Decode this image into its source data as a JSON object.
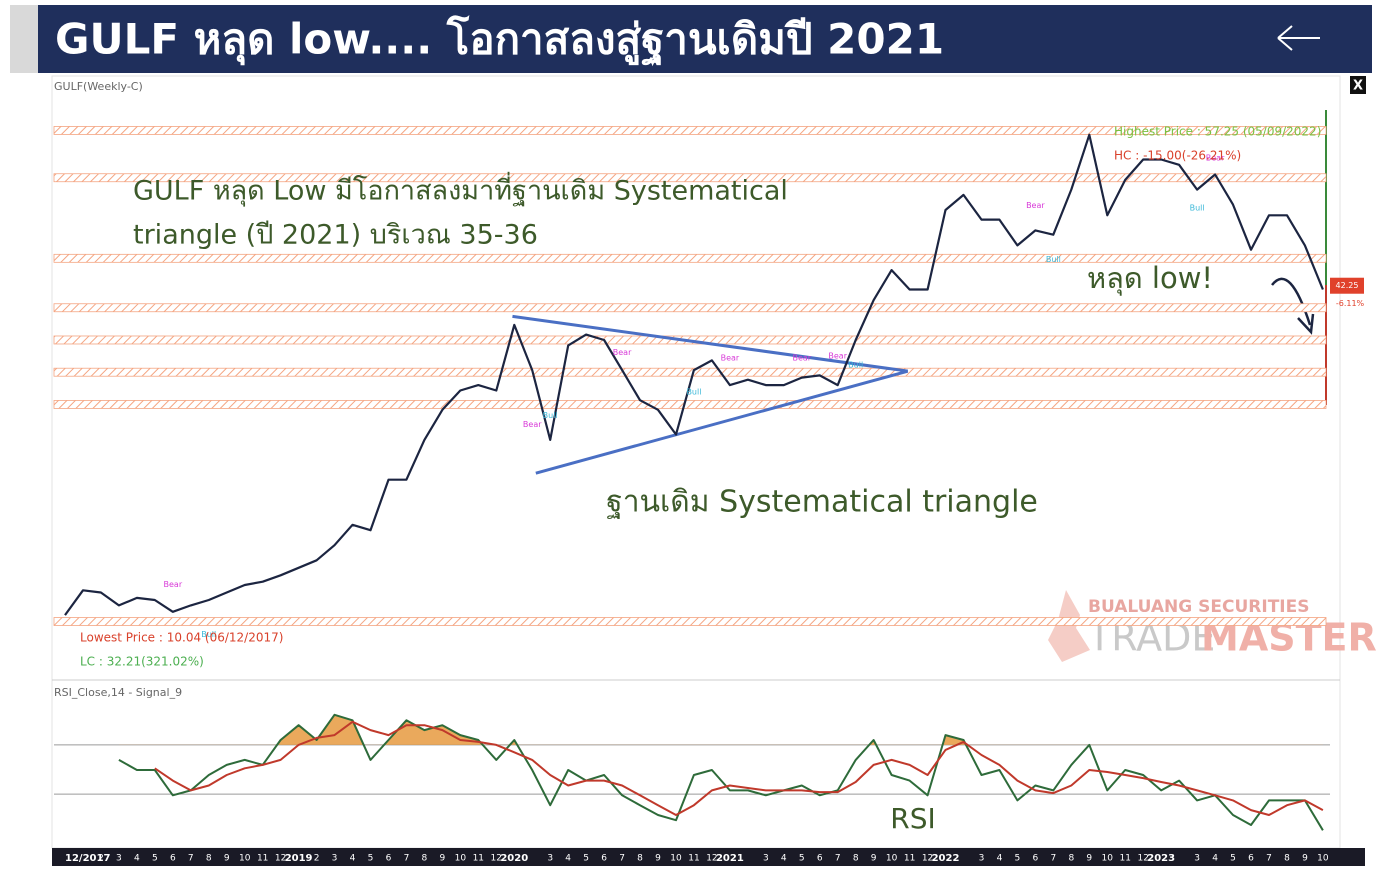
{
  "header": {
    "title": "GULF หลุด low.... โอกาสลงสู่ฐานเดิมปี 2021"
  },
  "close_label": "X",
  "watermark": {
    "company": "BUALUANG SECURITIES",
    "brand_a": "TRADE",
    "brand_b": "MASTER"
  },
  "chart_data": [
    {
      "type": "line",
      "title": "GULF(Weekly-C)",
      "series": [
        {
          "color": "#1c2541",
          "values": [
            11.6,
            13.9,
            13.7,
            12.5,
            13.2,
            13.0,
            11.9,
            12.5,
            13.0,
            13.7,
            14.4,
            14.7,
            15.3,
            16.0,
            16.7,
            18.1,
            20.0,
            19.5,
            24.2,
            24.2,
            27.9,
            30.7,
            32.5,
            33.0,
            32.5,
            38.6,
            34.4,
            27.9,
            36.7,
            37.7,
            37.2,
            34.4,
            31.6,
            30.7,
            28.4,
            34.4,
            35.3,
            33.0,
            33.5,
            33.0,
            33.0,
            33.7,
            33.9,
            33.0,
            37.2,
            40.9,
            43.7,
            41.9,
            41.9,
            49.3,
            50.7,
            48.4,
            48.4,
            46.0,
            47.4,
            47.0,
            51.2,
            56.3,
            48.8,
            52.1,
            54.0,
            54.0,
            53.5,
            51.2,
            52.6,
            49.8,
            45.6,
            48.8,
            48.8,
            46.0,
            41.9
          ]
        }
      ],
      "ylim": [
        6.3,
        60.0
      ],
      "zones": [
        56.7,
        52.3,
        44.8,
        40.2,
        37.2,
        34.2,
        31.2,
        11.0
      ],
      "zone_color": "#f4a582",
      "triangle": {
        "color": "#4a6fc4",
        "lines": [
          {
            "from": [
              24.9,
              39.4
            ],
            "to": [
              46.9,
              34.3
            ]
          },
          {
            "from": [
              26.2,
              24.8
            ],
            "to": [
              46.9,
              34.3
            ]
          }
        ]
      },
      "highest_label": "Highest Price : 57.25 (05/09/2022)",
      "hc_label": "HC : -15.00(-26.21%)",
      "lowest_label": "Lowest Price : 10.04 (06/12/2017)",
      "lc_label": "LC : 32.21(321.02%)",
      "last_price": 42.25,
      "change_label": "-6.11%",
      "signals": [
        {
          "label": "Bear",
          "at": 6,
          "price": 13.5
        },
        {
          "label": "Bull",
          "at": 8,
          "price": 10.7
        },
        {
          "label": "Bear",
          "at": 26,
          "price": 28.4
        },
        {
          "label": "Bull",
          "at": 27,
          "price": 31.1
        },
        {
          "label": "Bear",
          "at": 31,
          "price": 35.1
        },
        {
          "label": "Bull",
          "at": 35,
          "price": 33.3
        },
        {
          "label": "Bear",
          "at": 37,
          "price": 34.6
        },
        {
          "label": "Bear",
          "at": 41,
          "price": 34.6
        },
        {
          "label": "Bear",
          "at": 43,
          "price": 34.8
        },
        {
          "label": "Bull",
          "at": 44,
          "price": 35.8
        },
        {
          "label": "Bear",
          "at": 54,
          "price": 48.8
        },
        {
          "label": "Bull",
          "at": 55,
          "price": 45.6
        },
        {
          "label": "Bull",
          "at": 63,
          "price": 50.4
        },
        {
          "label": "Bear",
          "at": 64,
          "price": 53.2
        }
      ],
      "annotations": [
        "GULF หลุด Low มีโอกาสลงมาที่ฐานเดิม Systematical",
        "triangle (ปี 2021) บริเวณ 35-36",
        "หลุด low!",
        "ฐานเดิม Systematical triangle"
      ],
      "annotation_color": "#3d5a2a"
    },
    {
      "type": "line",
      "title": "RSI_Close,14 - Signal_9",
      "label": "RSI",
      "categories": [
        "12/2017",
        null,
        "2",
        "3",
        "4",
        "5",
        "6",
        "7",
        "8",
        "9",
        "10",
        "11",
        "12",
        "2019",
        "2",
        "3",
        "4",
        "5",
        "6",
        "7",
        "8",
        "9",
        "10",
        "11",
        "12",
        "2020",
        null,
        "3",
        "4",
        "5",
        "6",
        "7",
        "8",
        "9",
        "10",
        "11",
        "12",
        "2021",
        null,
        "3",
        "4",
        "5",
        "6",
        "7",
        "8",
        "9",
        "10",
        "11",
        "12",
        "2022",
        null,
        "3",
        "4",
        "5",
        "6",
        "7",
        "8",
        "9",
        "10",
        "11",
        "12",
        "2023",
        null,
        "3",
        "4",
        "5",
        "6",
        "7",
        "8",
        "9",
        "10"
      ],
      "series": [
        {
          "color": "#2e6b3a",
          "values": [
            null,
            null,
            null,
            57.8,
            49.6,
            49.6,
            29,
            33,
            45.5,
            53.7,
            57.8,
            53.7,
            74,
            86,
            74,
            94.5,
            90,
            57.8,
            74,
            90,
            82,
            86,
            78,
            74,
            57.8,
            74,
            49.6,
            21,
            49.6,
            41,
            45.5,
            29,
            21,
            13,
            8.8,
            45.5,
            49.6,
            33,
            33,
            29,
            33,
            37,
            29,
            33,
            57.8,
            74,
            45.5,
            41,
            29,
            78,
            74,
            45.5,
            49.6,
            24.9,
            37,
            33,
            53.7,
            70,
            33,
            49.6,
            45.5,
            33,
            41,
            24.9,
            29,
            13,
            4.9,
            24.9,
            24.9,
            24.9,
            0.6
          ]
        },
        {
          "color": "#c0392b",
          "values": [
            null,
            null,
            null,
            null,
            null,
            51,
            41,
            33,
            37,
            45.5,
            51,
            53.7,
            57.8,
            70,
            75.7,
            78,
            88.8,
            82,
            78,
            86,
            86,
            82,
            74,
            72.4,
            70,
            64,
            57.8,
            45.5,
            37,
            41,
            41,
            37,
            29,
            21,
            13,
            21,
            33,
            37,
            35,
            33,
            33,
            33,
            31.6,
            31.6,
            39.8,
            53.7,
            57.8,
            53.7,
            45.5,
            65.9,
            72.4,
            61.8,
            53.7,
            41,
            33,
            30.8,
            37,
            49.6,
            48,
            45.5,
            43,
            39.8,
            37,
            33,
            29,
            24.9,
            17,
            13,
            21,
            24.9,
            17
          ]
        }
      ],
      "ylim": [
        0,
        100
      ],
      "levels": [
        70,
        30
      ],
      "overbought_color": "#e8a04a"
    }
  ]
}
